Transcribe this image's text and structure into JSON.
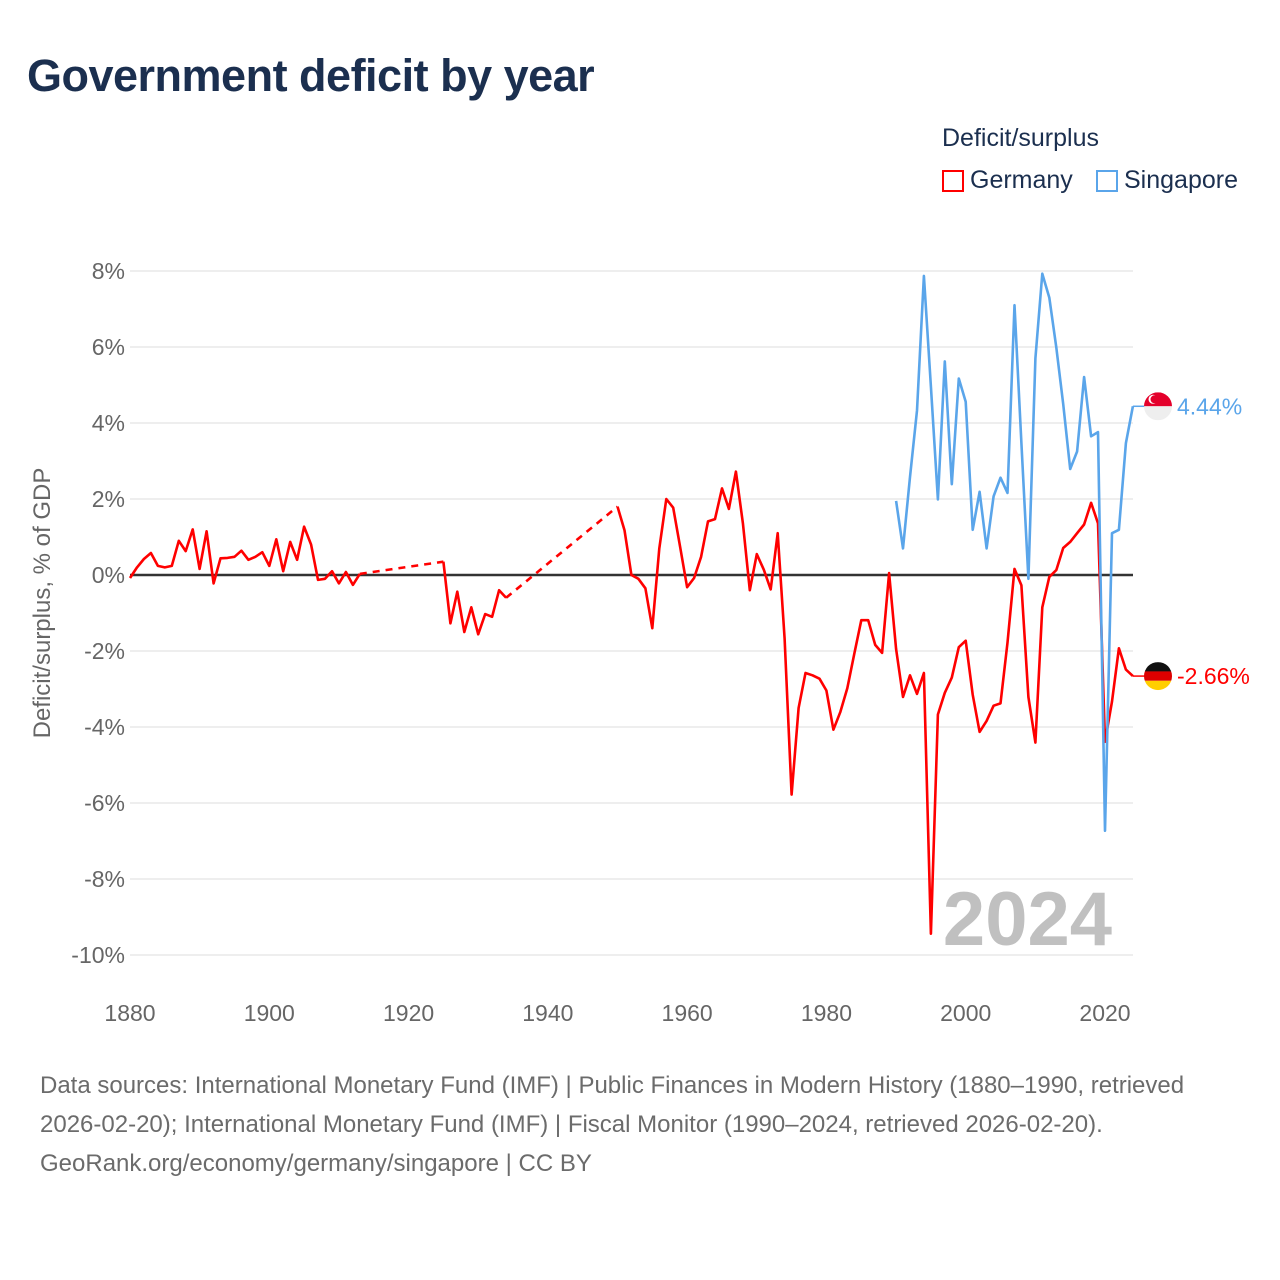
{
  "chart_data": {
    "type": "line",
    "title": "Government deficit by year",
    "ylabel": "Deficit/surplus, % of GDP",
    "xlabel": "",
    "xlim": [
      1880,
      2024
    ],
    "ylim": [
      -10,
      8
    ],
    "x_ticks": [
      1880,
      1900,
      1920,
      1940,
      1960,
      1980,
      2000,
      2020
    ],
    "y_ticks": [
      8,
      6,
      4,
      2,
      0,
      -2,
      -4,
      -6,
      -8,
      -10
    ],
    "y_tick_labels": [
      "8%",
      "6%",
      "4%",
      "2%",
      "0%",
      "-2%",
      "-4%",
      "-6%",
      "-8%",
      "-10%"
    ],
    "x_tick_labels": [
      "1880",
      "1900",
      "1920",
      "1940",
      "1960",
      "1980",
      "2000",
      "2020"
    ],
    "grid": true,
    "legend_title": "Deficit/surplus",
    "legend_position": "top-right",
    "year_watermark": "2024",
    "series": [
      {
        "name": "Germany",
        "color": "#ff0000",
        "end_label": "-2.66%",
        "flag": "germany-flag",
        "x": [
          1880,
          1881,
          1882,
          1883,
          1884,
          1885,
          1886,
          1887,
          1888,
          1889,
          1890,
          1891,
          1892,
          1893,
          1894,
          1895,
          1896,
          1897,
          1898,
          1899,
          1900,
          1901,
          1902,
          1903,
          1904,
          1905,
          1906,
          1907,
          1908,
          1909,
          1910,
          1911,
          1912,
          1913,
          1925,
          1926,
          1927,
          1928,
          1929,
          1930,
          1931,
          1932,
          1933,
          1934,
          1950,
          1951,
          1952,
          1953,
          1954,
          1955,
          1956,
          1957,
          1958,
          1959,
          1960,
          1961,
          1962,
          1963,
          1964,
          1965,
          1966,
          1967,
          1968,
          1969,
          1970,
          1971,
          1972,
          1973,
          1974,
          1975,
          1976,
          1977,
          1978,
          1979,
          1980,
          1981,
          1982,
          1983,
          1984,
          1985,
          1986,
          1987,
          1988,
          1989,
          1990,
          1991,
          1992,
          1993,
          1994,
          1995,
          1996,
          1997,
          1998,
          1999,
          2000,
          2001,
          2002,
          2003,
          2004,
          2005,
          2006,
          2007,
          2008,
          2009,
          2010,
          2011,
          2012,
          2013,
          2014,
          2015,
          2016,
          2017,
          2018,
          2019,
          2020,
          2021,
          2022,
          2023,
          2024
        ],
        "y": [
          -0.08,
          0.2,
          0.42,
          0.58,
          0.24,
          0.2,
          0.24,
          0.9,
          0.63,
          1.2,
          0.16,
          1.15,
          -0.22,
          0.44,
          0.45,
          0.48,
          0.64,
          0.4,
          0.48,
          0.6,
          0.24,
          0.94,
          0.1,
          0.87,
          0.4,
          1.27,
          0.8,
          -0.13,
          -0.1,
          0.1,
          -0.22,
          0.08,
          -0.26,
          0.03,
          0.35,
          -1.27,
          -0.44,
          -1.5,
          -0.85,
          -1.56,
          -1.03,
          -1.1,
          -0.4,
          -0.6,
          1.8,
          1.18,
          0.0,
          -0.1,
          -0.35,
          -1.4,
          0.7,
          2.0,
          1.77,
          0.73,
          -0.32,
          -0.08,
          0.48,
          1.41,
          1.47,
          2.28,
          1.74,
          2.72,
          1.36,
          -0.4,
          0.55,
          0.14,
          -0.38,
          1.1,
          -1.67,
          -5.78,
          -3.5,
          -2.58,
          -2.64,
          -2.73,
          -3.04,
          -4.07,
          -3.6,
          -2.98,
          -2.07,
          -1.19,
          -1.19,
          -1.84,
          -2.05,
          0.05,
          -1.95,
          -3.21,
          -2.64,
          -3.13,
          -2.58,
          -9.44,
          -3.67,
          -3.1,
          -2.7,
          -1.9,
          -1.73,
          -3.15,
          -4.13,
          -3.84,
          -3.44,
          -3.38,
          -1.78,
          0.16,
          -0.27,
          -3.21,
          -4.41,
          -0.85,
          -0.05,
          0.13,
          0.71,
          0.87,
          1.1,
          1.33,
          1.9,
          1.36,
          -4.39,
          -3.33,
          -1.93,
          -2.49,
          -2.66
        ]
      },
      {
        "name": "Singapore",
        "color": "#5aa5ea",
        "end_label": "4.44%",
        "flag": "singapore-flag",
        "x": [
          1990,
          1991,
          1992,
          1993,
          1994,
          1995,
          1996,
          1997,
          1998,
          1999,
          2000,
          2001,
          2002,
          2003,
          2004,
          2005,
          2006,
          2007,
          2008,
          2009,
          2010,
          2011,
          2012,
          2013,
          2014,
          2015,
          2016,
          2017,
          2018,
          2019,
          2020,
          2021,
          2022,
          2023,
          2024
        ],
        "y": [
          1.95,
          0.7,
          2.58,
          4.33,
          7.87,
          4.96,
          1.99,
          5.62,
          2.39,
          5.17,
          4.56,
          1.19,
          2.19,
          0.7,
          2.07,
          2.56,
          2.16,
          7.1,
          3.47,
          -0.1,
          5.7,
          7.93,
          7.3,
          5.99,
          4.5,
          2.79,
          3.25,
          5.21,
          3.65,
          3.76,
          -6.73,
          1.1,
          1.19,
          3.47,
          4.44
        ]
      }
    ]
  },
  "footer": {
    "sources": "Data sources: International Monetary Fund (IMF) | Public Finances in Modern History (1880–1990, retrieved 2026-02-20); International Monetary Fund (IMF) | Fiscal Monitor (1990–2024, retrieved 2026-02-20).",
    "attribution": "GeoRank.org/economy/germany/singapore | CC BY"
  }
}
